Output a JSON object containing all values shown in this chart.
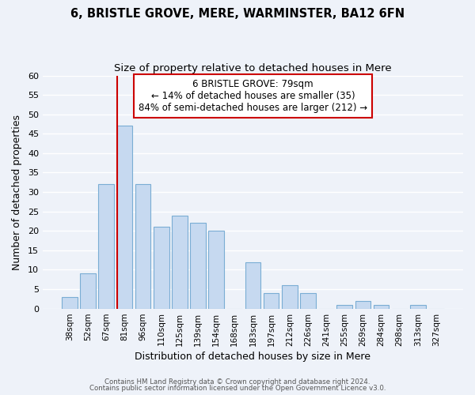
{
  "title1": "6, BRISTLE GROVE, MERE, WARMINSTER, BA12 6FN",
  "title2": "Size of property relative to detached houses in Mere",
  "xlabel": "Distribution of detached houses by size in Mere",
  "ylabel": "Number of detached properties",
  "bin_labels": [
    "38sqm",
    "52sqm",
    "67sqm",
    "81sqm",
    "96sqm",
    "110sqm",
    "125sqm",
    "139sqm",
    "154sqm",
    "168sqm",
    "183sqm",
    "197sqm",
    "212sqm",
    "226sqm",
    "241sqm",
    "255sqm",
    "269sqm",
    "284sqm",
    "298sqm",
    "313sqm",
    "327sqm"
  ],
  "bar_values": [
    3,
    9,
    32,
    47,
    32,
    21,
    24,
    22,
    20,
    0,
    12,
    4,
    6,
    4,
    0,
    1,
    2,
    1,
    0,
    1,
    0
  ],
  "bar_color": "#c6d9f0",
  "bar_edge_color": "#7aadd4",
  "ylim": [
    0,
    60
  ],
  "yticks": [
    0,
    5,
    10,
    15,
    20,
    25,
    30,
    35,
    40,
    45,
    50,
    55,
    60
  ],
  "vline_color": "#cc0000",
  "annotation_title": "6 BRISTLE GROVE: 79sqm",
  "annotation_line1": "← 14% of detached houses are smaller (35)",
  "annotation_line2": "84% of semi-detached houses are larger (212) →",
  "annotation_box_color": "#ffffff",
  "annotation_box_edge": "#cc0000",
  "footer1": "Contains HM Land Registry data © Crown copyright and database right 2024.",
  "footer2": "Contains public sector information licensed under the Open Government Licence v3.0.",
  "background_color": "#eef2f9",
  "grid_color": "#ffffff",
  "title1_fontsize": 10.5,
  "title2_fontsize": 9.5
}
